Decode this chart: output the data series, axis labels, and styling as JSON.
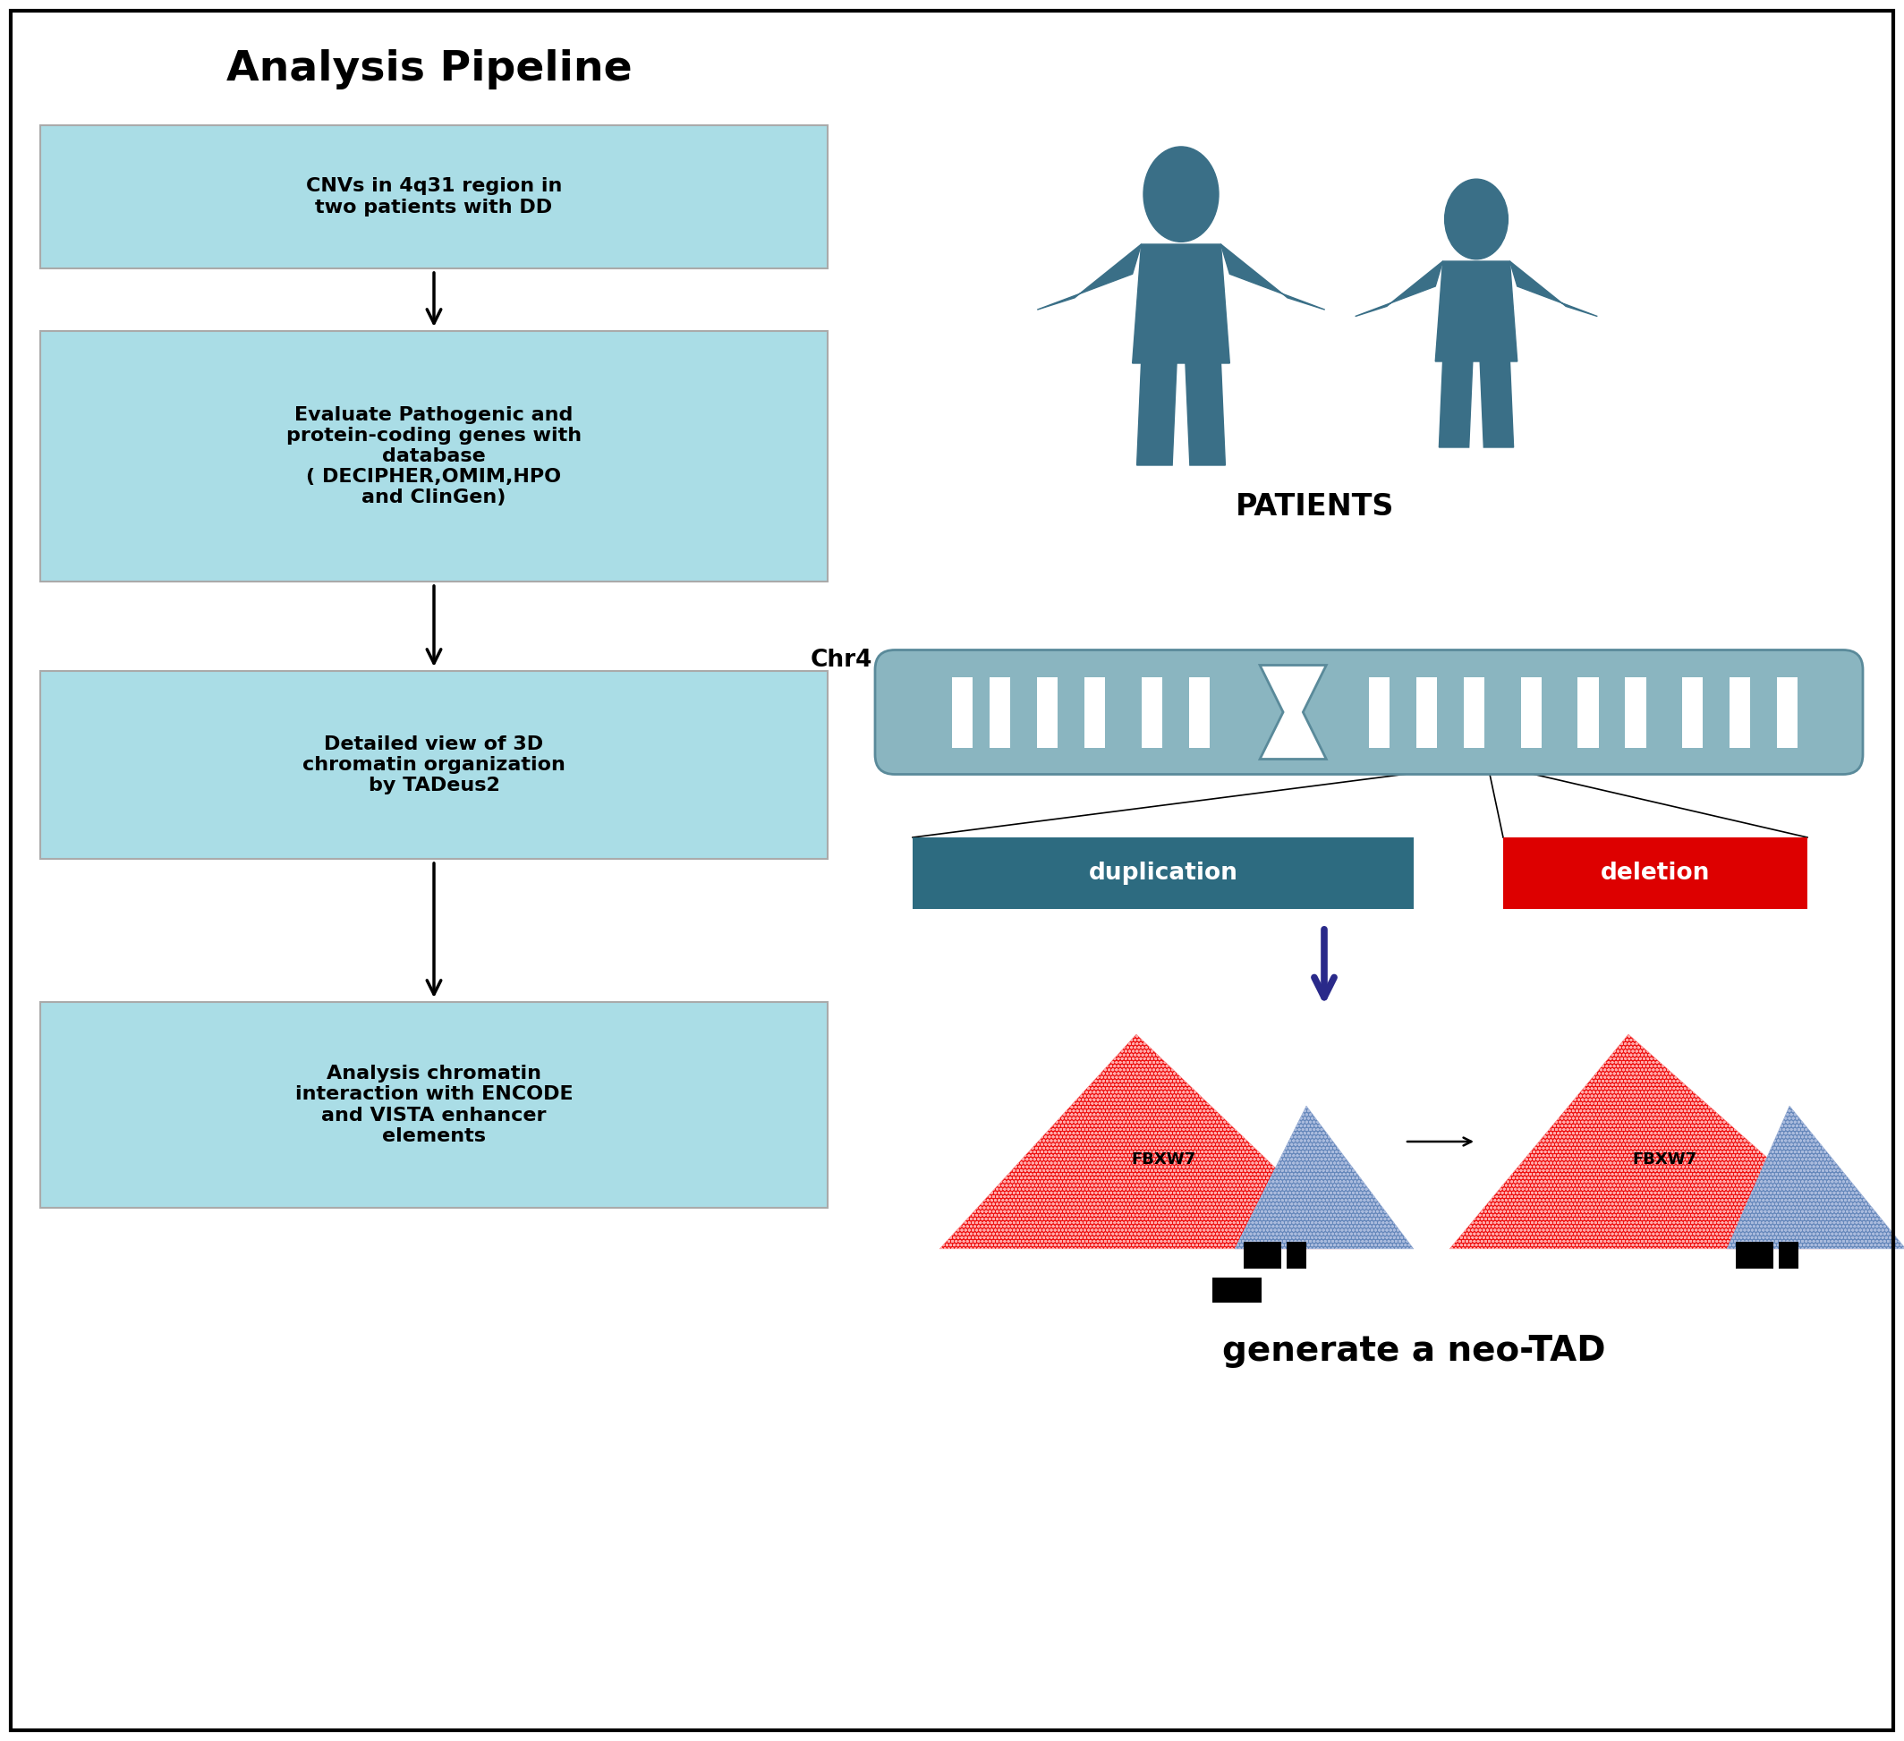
{
  "title": "Analysis Pipeline",
  "box_color": "#aadde6",
  "box_text_color": "#000000",
  "bg_color": "#ffffff",
  "border_color": "#000000",
  "patient_color": "#3a6f87",
  "patients_label": "PATIENTS",
  "chr_label": "Chr4",
  "chr_body_color": "#8ab5c0",
  "chr_band_color": "#ffffff",
  "chr_outline_color": "#5a8a9a",
  "duplication_color": "#2d6b80",
  "deletion_color": "#dd0000",
  "duplication_label": "duplication",
  "deletion_label": "deletion",
  "neo_tad_label": "generate a neo-TAD",
  "fbxw7_label": "FBXW7",
  "arrow_color_blue": "#2a2a8a",
  "tad_red": "#ee1111",
  "tad_blue": "#6688bb",
  "pipeline_boxes": [
    "CNVs in 4q31 region in\ntwo patients with DD",
    "Evaluate Pathogenic and\nprotein-coding genes with\ndatabase\n( DECIPHER,OMIM,HPO\nand ClinGen)",
    "Detailed view of 3D\nchromatin organization\nby TADeus2",
    "Analysis chromatin\ninteraction with ENCODE\nand VISTA enhancer\nelements"
  ],
  "fig_w": 21.28,
  "fig_h": 19.46
}
